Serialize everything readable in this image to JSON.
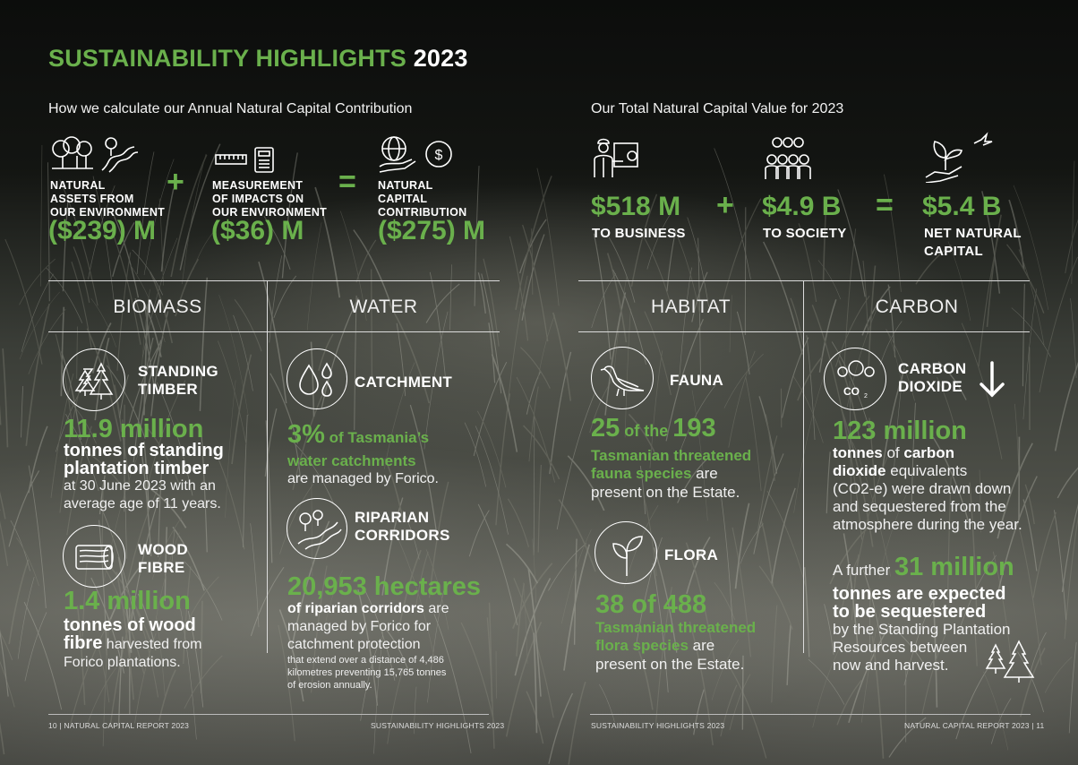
{
  "title": {
    "main": "SUSTAINABILITY HIGHLIGHTS",
    "year": "2023"
  },
  "left_sub": "How we calculate our Annual Natural Capital Contribution",
  "right_sub": "Our Total Natural Capital Value for 2023",
  "contribution": {
    "assets": {
      "label1": "NATURAL",
      "label2": "ASSETS FROM",
      "label3": "OUR ENVIRONMENT",
      "value": "($239) M"
    },
    "impacts": {
      "label1": "MEASUREMENT",
      "label2": "OF IMPACTS ON",
      "label3": "OUR ENVIRONMENT",
      "value": "($36) M"
    },
    "total": {
      "label1": "NATURAL",
      "label2": "CAPITAL",
      "label3": "CONTRIBUTION",
      "value": "($275) M"
    },
    "plus": "+",
    "equals": "="
  },
  "total_value": {
    "business": {
      "value": "$518 M",
      "label": "TO BUSINESS"
    },
    "society": {
      "value": "$4.9 B",
      "label": "TO SOCIETY"
    },
    "net": {
      "value": "$5.4 B",
      "label1": "NET NATURAL",
      "label2": "CAPITAL"
    },
    "plus": "+",
    "equals": "="
  },
  "categories": {
    "biomass": "BIOMASS",
    "water": "WATER",
    "habitat": "HABITAT",
    "carbon": "CARBON"
  },
  "biomass": {
    "standing": {
      "label1": "STANDING",
      "label2": "TIMBER",
      "stat": "11.9 million",
      "bold1": "tonnes of standing",
      "bold2": "plantation timber",
      "rest1": "at 30 June 2023 with an",
      "rest2": "average age of 11 years."
    },
    "wood": {
      "label1": "WOOD",
      "label2": "FIBRE",
      "stat": "1.4 million",
      "bold1": "tonnes of wood",
      "bold2": "fibre",
      "rest1": " harvested from",
      "rest2": "Forico plantations."
    }
  },
  "water": {
    "catchment": {
      "label": "CATCHMENT",
      "stat": "3%",
      "stat_rest": " of Tasmania’s",
      "line2": "water catchments",
      "line3": "are managed by Forico."
    },
    "riparian": {
      "label1": "RIPARIAN",
      "label2": "CORRIDORS",
      "stat": "20,953 hectares",
      "bold": "of riparian corridors",
      "rest1": " are",
      "rest2": "managed by Forico for",
      "rest3": "catchment protection",
      "tiny1": "that extend over a distance of 4,486",
      "tiny2": "kilometres preventing 15,765 tonnes",
      "tiny3": "of erosion annually."
    }
  },
  "habitat": {
    "fauna": {
      "label": "FAUNA",
      "n1": "25",
      "of": " of the ",
      "n2": "193",
      "g1": "Tasmanian threatened",
      "g2": "fauna species",
      "rest1": " are",
      "rest2": "present on the Estate."
    },
    "flora": {
      "label": "FLORA",
      "stat": "38 of 488",
      "g1": "Tasmanian threatened",
      "g2": "flora species",
      "rest1": " are",
      "rest2": "present on the Estate."
    }
  },
  "carbon": {
    "co2": {
      "label1": "CARBON",
      "label2": "DIOXIDE",
      "icon_text": "CO",
      "icon_sub": "2",
      "stat": "123 million",
      "b1": "tonnes",
      "t1": " of ",
      "b2": "carbon",
      "b3": "dioxide",
      "t2": " equivalents",
      "t3": "(CO2-e) were drawn down",
      "t4": "and sequestered from the",
      "t5": "atmosphere during the year."
    },
    "further": {
      "pre": "A further ",
      "stat": "31 million",
      "b1": "tonnes are expected",
      "b2": "to be sequestered",
      "t1": "by the Standing Plantation",
      "t2": "Resources between",
      "t3": "now and harvest."
    }
  },
  "footer": {
    "left": "10  |  NATURAL CAPITAL REPORT 2023",
    "left_mid": "SUSTAINABILITY HIGHLIGHTS 2023",
    "right_mid": "SUSTAINABILITY HIGHLIGHTS 2023",
    "right": "NATURAL CAPITAL REPORT 2023  |  11"
  },
  "colors": {
    "accent_green": "#6ab04c"
  }
}
